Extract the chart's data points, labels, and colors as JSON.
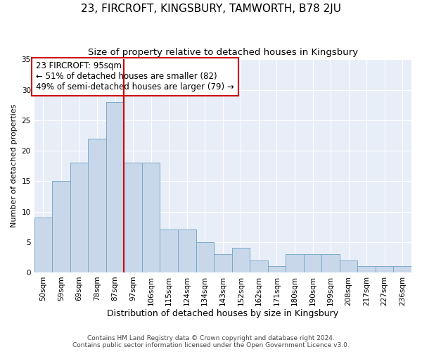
{
  "title": "23, FIRCROFT, KINGSBURY, TAMWORTH, B78 2JU",
  "subtitle": "Size of property relative to detached houses in Kingsbury",
  "xlabel": "Distribution of detached houses by size in Kingsbury",
  "ylabel": "Number of detached properties",
  "categories": [
    "50sqm",
    "59sqm",
    "69sqm",
    "78sqm",
    "87sqm",
    "97sqm",
    "106sqm",
    "115sqm",
    "124sqm",
    "134sqm",
    "143sqm",
    "152sqm",
    "162sqm",
    "171sqm",
    "180sqm",
    "190sqm",
    "199sqm",
    "208sqm",
    "217sqm",
    "227sqm",
    "236sqm"
  ],
  "values": [
    9,
    15,
    18,
    22,
    28,
    18,
    18,
    7,
    7,
    5,
    3,
    4,
    2,
    1,
    3,
    3,
    3,
    2,
    1,
    1,
    1
  ],
  "bar_color": "#c8d8ea",
  "bar_edge_color": "#7baac8",
  "vline_x_index": 4,
  "vline_color": "#cc0000",
  "annotation_text": "23 FIRCROFT: 95sqm\n← 51% of detached houses are smaller (82)\n49% of semi-detached houses are larger (79) →",
  "annotation_box_color": "#ffffff",
  "annotation_box_edge_color": "#cc0000",
  "ylim": [
    0,
    35
  ],
  "yticks": [
    0,
    5,
    10,
    15,
    20,
    25,
    30,
    35
  ],
  "plot_bg_color": "#e8eef8",
  "footer_line1": "Contains HM Land Registry data © Crown copyright and database right 2024.",
  "footer_line2": "Contains public sector information licensed under the Open Government Licence v3.0.",
  "title_fontsize": 11,
  "subtitle_fontsize": 9.5,
  "xlabel_fontsize": 9,
  "ylabel_fontsize": 8,
  "tick_fontsize": 7.5,
  "footer_fontsize": 6.5,
  "annotation_fontsize": 8.5
}
